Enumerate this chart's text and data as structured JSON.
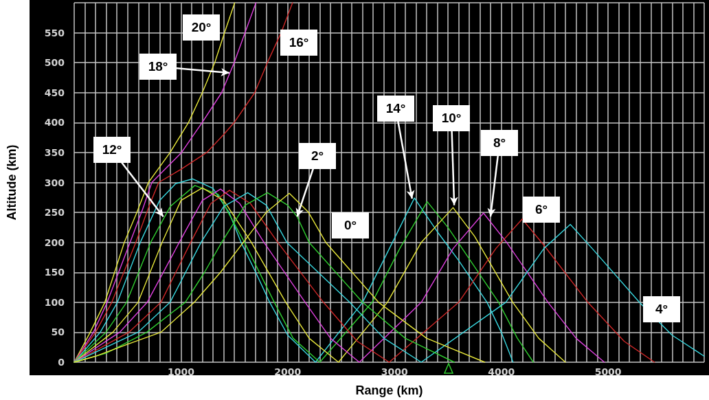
{
  "chart_data": {
    "type": "line",
    "xlabel": "Range (km)",
    "ylabel": "Altitude (km)",
    "xlim": [
      0,
      5900
    ],
    "ylim": [
      0,
      600
    ],
    "xticks": [
      {
        "value": 0,
        "label": null
      },
      {
        "value": 100,
        "label": null
      },
      {
        "value": 200,
        "label": null
      },
      {
        "value": 300,
        "label": null
      },
      {
        "value": 400,
        "label": null
      },
      {
        "value": 500,
        "label": null
      },
      {
        "value": 600,
        "label": null
      },
      {
        "value": 700,
        "label": null
      },
      {
        "value": 800,
        "label": null
      },
      {
        "value": 900,
        "label": null
      },
      1000,
      {
        "value": 1100,
        "label": null
      },
      {
        "value": 1200,
        "label": null
      },
      {
        "value": 1300,
        "label": null
      },
      {
        "value": 1400,
        "label": null
      },
      {
        "value": 1500,
        "label": null
      },
      {
        "value": 1600,
        "label": null
      },
      {
        "value": 1700,
        "label": null
      },
      {
        "value": 1800,
        "label": null
      },
      {
        "value": 1900,
        "label": null
      },
      2000,
      {
        "value": 2100,
        "label": null
      },
      {
        "value": 2200,
        "label": null
      },
      {
        "value": 2300,
        "label": null
      },
      {
        "value": 2400,
        "label": null
      },
      {
        "value": 2500,
        "label": null
      },
      {
        "value": 2600,
        "label": null
      },
      {
        "value": 2700,
        "label": null
      },
      {
        "value": 2800,
        "label": null
      },
      {
        "value": 2900,
        "label": null
      },
      3000,
      {
        "value": 3100,
        "label": null
      },
      {
        "value": 3200,
        "label": null
      },
      {
        "value": 3300,
        "label": null
      },
      {
        "value": 3400,
        "label": null
      },
      {
        "value": 3500,
        "label": null
      },
      {
        "value": 3600,
        "label": null
      },
      {
        "value": 3700,
        "label": null
      },
      {
        "value": 3800,
        "label": null
      },
      {
        "value": 3900,
        "label": null
      },
      4000,
      {
        "value": 4100,
        "label": null
      },
      {
        "value": 4200,
        "label": null
      },
      {
        "value": 4300,
        "label": null
      },
      {
        "value": 4400,
        "label": null
      },
      {
        "value": 4500,
        "label": null
      },
      {
        "value": 4600,
        "label": null
      },
      {
        "value": 4700,
        "label": null
      },
      {
        "value": 4800,
        "label": null
      },
      {
        "value": 4900,
        "label": null
      },
      5000,
      {
        "value": 5100,
        "label": null
      },
      {
        "value": 5200,
        "label": null
      },
      {
        "value": 5300,
        "label": null
      },
      {
        "value": 5400,
        "label": null
      },
      {
        "value": 5500,
        "label": null
      },
      {
        "value": 5600,
        "label": null
      },
      {
        "value": 5700,
        "label": null
      },
      {
        "value": 5800,
        "label": null
      },
      {
        "value": 5900,
        "label": null
      }
    ],
    "yticks": [
      0,
      50,
      100,
      150,
      200,
      250,
      300,
      350,
      400,
      450,
      500,
      550
    ],
    "grid": true,
    "marker": "none",
    "line_style": "solid",
    "series": [
      {
        "color": "#e8e83a",
        "x": [
          0,
          150,
          287,
          469,
          587,
          695,
          898,
          1070,
          1200,
          1316,
          1408,
          1503
        ],
        "values": [
          0,
          50,
          100,
          200,
          250,
          300,
          350,
          400,
          450,
          500,
          550,
          600
        ]
      },
      {
        "color": "#e040e0",
        "x": [
          0,
          180,
          309,
          523,
          640,
          727,
          1005,
          1198,
          1381,
          1498,
          1600,
          1702
        ],
        "values": [
          0,
          50,
          100,
          200,
          255,
          300,
          350,
          400,
          450,
          500,
          550,
          600
        ]
      },
      {
        "color": "#d02828",
        "x": [
          0,
          201,
          352,
          577,
          700,
          791,
          1000,
          1241,
          1400,
          1498,
          1691,
          1809,
          1938,
          2045
        ],
        "values": [
          0,
          50,
          100,
          200,
          260,
          300,
          322,
          350,
          380,
          400,
          450,
          500,
          550,
          600
        ]
      },
      {
        "color": "#38d8e0",
        "x": [
          0,
          244,
          405,
          619,
          800,
          950,
          1110,
          1300,
          1450,
          1563,
          1700,
          1831,
          2000,
          2260,
          2701,
          3000,
          3186,
          3400,
          3600,
          3866,
          4000,
          4110
        ],
        "values": [
          0,
          50,
          100,
          200,
          270,
          298,
          306,
          290,
          250,
          200,
          150,
          100,
          45,
          0,
          100,
          207,
          274,
          218,
          170,
          100,
          50,
          0
        ]
      },
      {
        "color": "#30d030",
        "x": [
          0,
          298,
          491,
          716,
          900,
          1130,
          1350,
          1595,
          1874,
          2050,
          2300,
          2791,
          3050,
          3306,
          3500,
          3975,
          4150,
          4300
        ],
        "values": [
          0,
          50,
          100,
          200,
          260,
          295,
          280,
          200,
          100,
          40,
          0,
          100,
          190,
          268,
          225,
          100,
          40,
          0
        ]
      },
      {
        "color": "#e8e83a",
        "x": [
          0,
          362,
          598,
          823,
          1000,
          1200,
          1400,
          1659,
          1981,
          2200,
          2475,
          2933,
          3250,
          3548,
          3750,
          4107,
          4350,
          4600
        ],
        "values": [
          0,
          50,
          100,
          200,
          270,
          291,
          270,
          200,
          100,
          40,
          0,
          100,
          200,
          258,
          210,
          100,
          40,
          0
        ]
      },
      {
        "color": "#e040e0",
        "x": [
          0,
          426,
          684,
          984,
          1200,
          1370,
          1550,
          1777,
          2163,
          2400,
          2670,
          3251,
          3550,
          3833,
          4050,
          4437,
          4700,
          4965
        ],
        "values": [
          0,
          50,
          100,
          200,
          270,
          289,
          265,
          200,
          100,
          40,
          0,
          100,
          190,
          249,
          200,
          100,
          40,
          0
        ]
      },
      {
        "color": "#d02828",
        "x": [
          0,
          512,
          812,
          1091,
          1280,
          1455,
          1650,
          1906,
          2334,
          2650,
          2950,
          3601,
          3950,
          4195,
          4400,
          4810,
          5150,
          5435
        ],
        "values": [
          0,
          50,
          100,
          200,
          265,
          287,
          265,
          200,
          100,
          35,
          0,
          100,
          190,
          239,
          195,
          100,
          35,
          0
        ]
      },
      {
        "color": "#38d8e0",
        "x": [
          0,
          598,
          898,
          1188,
          1400,
          1625,
          1800,
          1991,
          2580,
          2900,
          3250,
          4042,
          4400,
          4646,
          4850,
          5293,
          5600,
          5900
        ],
        "values": [
          0,
          50,
          100,
          200,
          260,
          283,
          262,
          200,
          100,
          40,
          0,
          100,
          190,
          230,
          190,
          100,
          45,
          10
        ]
      },
      {
        "color": "#30d030",
        "x": [
          0,
          300,
          680,
          1040,
          1220,
          1381,
          1600,
          1810,
          2000,
          2088,
          2200,
          2700,
          3100,
          3560
        ],
        "values": [
          0,
          15,
          50,
          100,
          150,
          200,
          262,
          283,
          262,
          243,
          200,
          100,
          40,
          0
        ]
      },
      {
        "color": "#e8e83a",
        "x": [
          0,
          200,
          500,
          812,
          1125,
          1370,
          1584,
          1798,
          2015,
          2195,
          2356,
          2850,
          3300,
          3845
        ],
        "values": [
          0,
          10,
          30,
          50,
          100,
          150,
          200,
          250,
          282,
          250,
          200,
          100,
          40,
          0
        ]
      }
    ],
    "annotations": [
      "20°",
      {
        "text": "18°",
        "x": 1453,
        "y": 483
      },
      "16°",
      {
        "text": "12°",
        "x": 835,
        "y": 243
      },
      {
        "text": "2°",
        "x": 2088,
        "y": 243
      },
      "0°",
      {
        "text": "14°",
        "x": 3164,
        "y": 273
      },
      {
        "text": "10°",
        "x": 3559,
        "y": 262
      },
      {
        "text": "8°",
        "x": 3899,
        "y": 243
      },
      "6°",
      "4°"
    ]
  }
}
